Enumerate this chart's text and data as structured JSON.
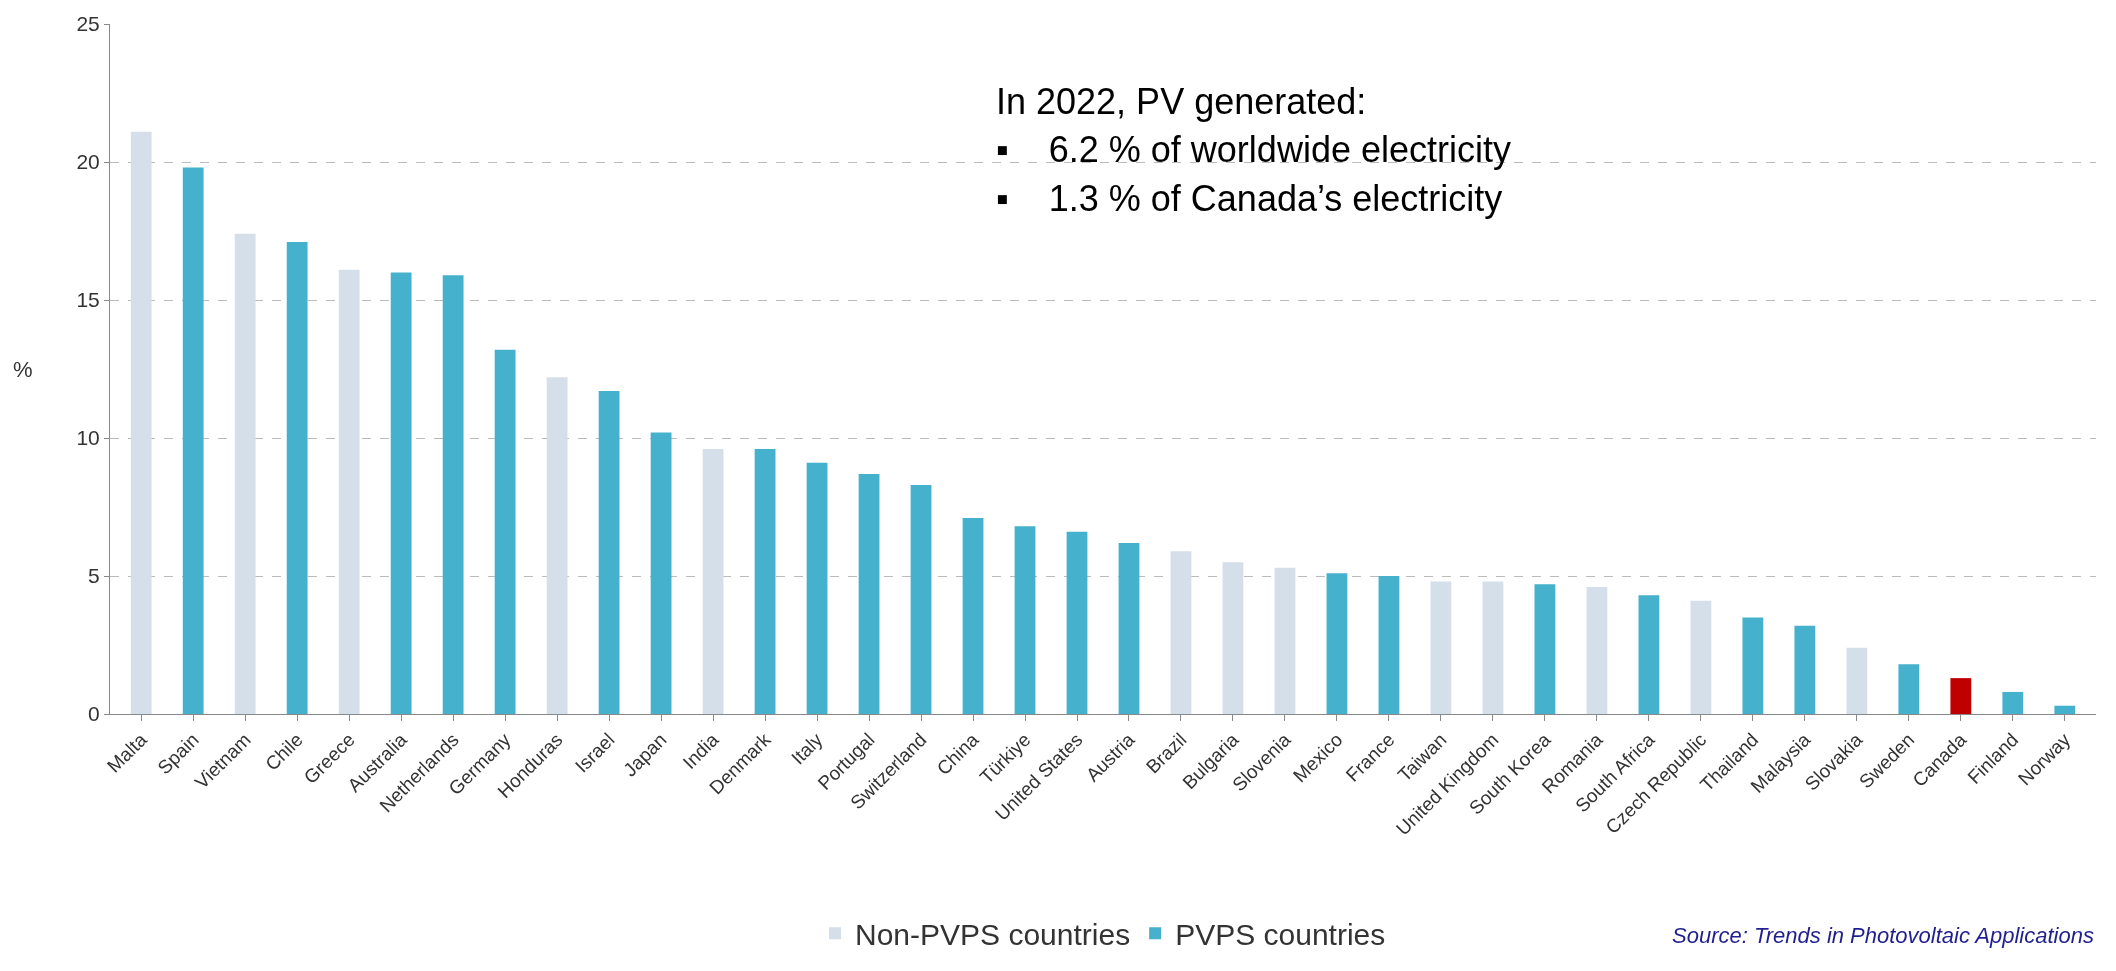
{
  "chart_data": {
    "type": "bar",
    "ylabel": "%",
    "categories": [
      "Malta",
      "Spain",
      "Vietnam",
      "Chile",
      "Greece",
      "Australia",
      "Netherlands",
      "Germany",
      "Honduras",
      "Israel",
      "Japan",
      "India",
      "Denmark",
      "Italy",
      "Portugal",
      "Switzerland",
      "China",
      "Türkiye",
      "United States",
      "Austria",
      "Brazil",
      "Bulgaria",
      "Slovenia",
      "Mexico",
      "France",
      "Taiwan",
      "United Kingdom",
      "South Korea",
      "Romania",
      "South Africa",
      "Czech Republic",
      "Thailand",
      "Malaysia",
      "Slovakia",
      "Sweden",
      "Canada",
      "Finland",
      "Norway"
    ],
    "series": [
      {
        "name": "Non-PVPS countries",
        "color": "#d5dfe9",
        "values": [
          21.1,
          null,
          17.4,
          null,
          16.1,
          null,
          null,
          null,
          12.2,
          null,
          null,
          9.6,
          null,
          null,
          null,
          null,
          null,
          null,
          null,
          null,
          5.9,
          5.5,
          5.3,
          null,
          null,
          4.8,
          4.8,
          null,
          4.6,
          null,
          4.1,
          null,
          null,
          2.4,
          null,
          null,
          null,
          null
        ]
      },
      {
        "name": "PVPS countries",
        "color": "#45b1cc",
        "colors": [
          "#45b1cc",
          "#45b1cc",
          "#45b1cc",
          "#45b1cc",
          "#45b1cc",
          "#45b1cc",
          "#45b1cc",
          "#45b1cc",
          "#45b1cc",
          "#45b1cc",
          "#45b1cc",
          "#45b1cc",
          "#45b1cc",
          "#45b1cc",
          "#45b1cc",
          "#45b1cc",
          "#45b1cc",
          "#45b1cc",
          "#45b1cc",
          "#45b1cc",
          "#45b1cc",
          "#45b1cc",
          "#45b1cc",
          "#45b1cc",
          "#45b1cc",
          "#45b1cc",
          "#45b1cc",
          "#45b1cc",
          "#45b1cc",
          "#45b1cc",
          "#45b1cc",
          "#45b1cc",
          "#45b1cc",
          "#45b1cc",
          "#45b1cc",
          "#c00000",
          "#45b1cc",
          "#45b1cc"
        ],
        "values": [
          null,
          19.8,
          null,
          17.1,
          null,
          16.0,
          15.9,
          13.2,
          null,
          11.7,
          10.2,
          null,
          9.6,
          9.1,
          8.7,
          8.3,
          7.1,
          6.8,
          6.6,
          6.2,
          null,
          null,
          null,
          5.1,
          5.0,
          null,
          null,
          4.7,
          null,
          4.3,
          null,
          3.5,
          3.2,
          null,
          1.8,
          1.3,
          0.8,
          0.3
        ]
      }
    ],
    "ylim": [
      0,
      25
    ],
    "yticks": [
      0,
      5,
      10,
      15,
      20,
      25
    ],
    "grid": "y",
    "legend": "bottom",
    "annotations": [
      "In 2022, PV generated:",
      "▪    6.2 % of worldwide electricity",
      "▪    1.3 % of Canada’s electricity",
      "Source: Trends in Photovoltaic Applications"
    ]
  }
}
